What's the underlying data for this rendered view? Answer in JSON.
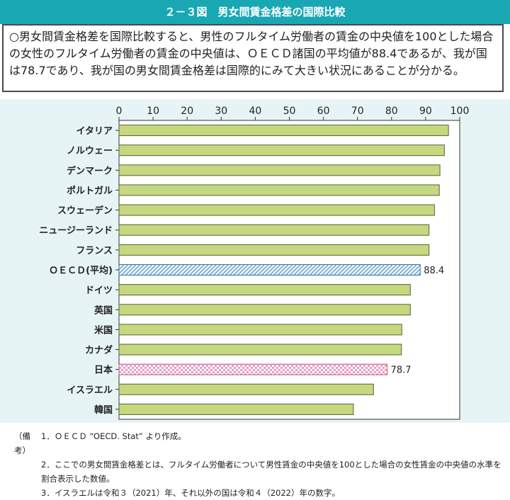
{
  "title": "２－３図　男女間賃金格差の国際比較",
  "summary": "○男女間賃金格差を国際比較すると、男性のフルタイム労働者の賃金の中央値を100とした場合の女性のフルタイム労働者の賃金の中央値は、ＯＥＣＤ諸国の平均値が88.4であるが、我が国は78.7であり、我が国の男女間賃金格差は国際的にみて大きい状況にあることが分かる。",
  "notes": {
    "prefix": "（備考）",
    "items": [
      "1．ＯＥＣＤ “OECD. Stat” より作成。",
      "2．ここでの男女間賃金格差とは、フルタイム労働者について男性賃金の中央値を100とした場合の女性賃金の中央値の水準を割合表示した数値。",
      "3．イスラエルは令和３（2021）年、それ以外の国は令和４（2022）年の数字。"
    ]
  },
  "colors": {
    "header": "#19a7b4",
    "panel_bg": "#e7f4f5",
    "bar": "#c5d87e",
    "oecd_bar": "#9ec6ee",
    "japan_bar": "#f0b3d3"
  },
  "chart_data": {
    "type": "bar",
    "orientation": "horizontal",
    "categories": [
      "イタリア",
      "ノルウェー",
      "デンマーク",
      "ポルトガル",
      "スウェーデン",
      "ニュージーランド",
      "フランス",
      "ＯＥＣＤ(平均)",
      "ドイツ",
      "英国",
      "米国",
      "カナダ",
      "日本",
      "イスラエル",
      "韓国"
    ],
    "values": [
      96.7,
      95.5,
      94.2,
      94.0,
      92.6,
      91.0,
      91.0,
      88.4,
      85.5,
      85.5,
      83.0,
      82.9,
      78.7,
      74.7,
      68.8
    ],
    "highlight": {
      "ＯＥＣＤ(平均)": {
        "pattern": "hatch",
        "label": "88.4"
      },
      "日本": {
        "pattern": "check",
        "label": "78.7"
      }
    },
    "xlim": [
      0,
      100
    ],
    "xticks": [
      0,
      10,
      20,
      30,
      40,
      50,
      60,
      70,
      80,
      90,
      100
    ],
    "grid": false
  }
}
